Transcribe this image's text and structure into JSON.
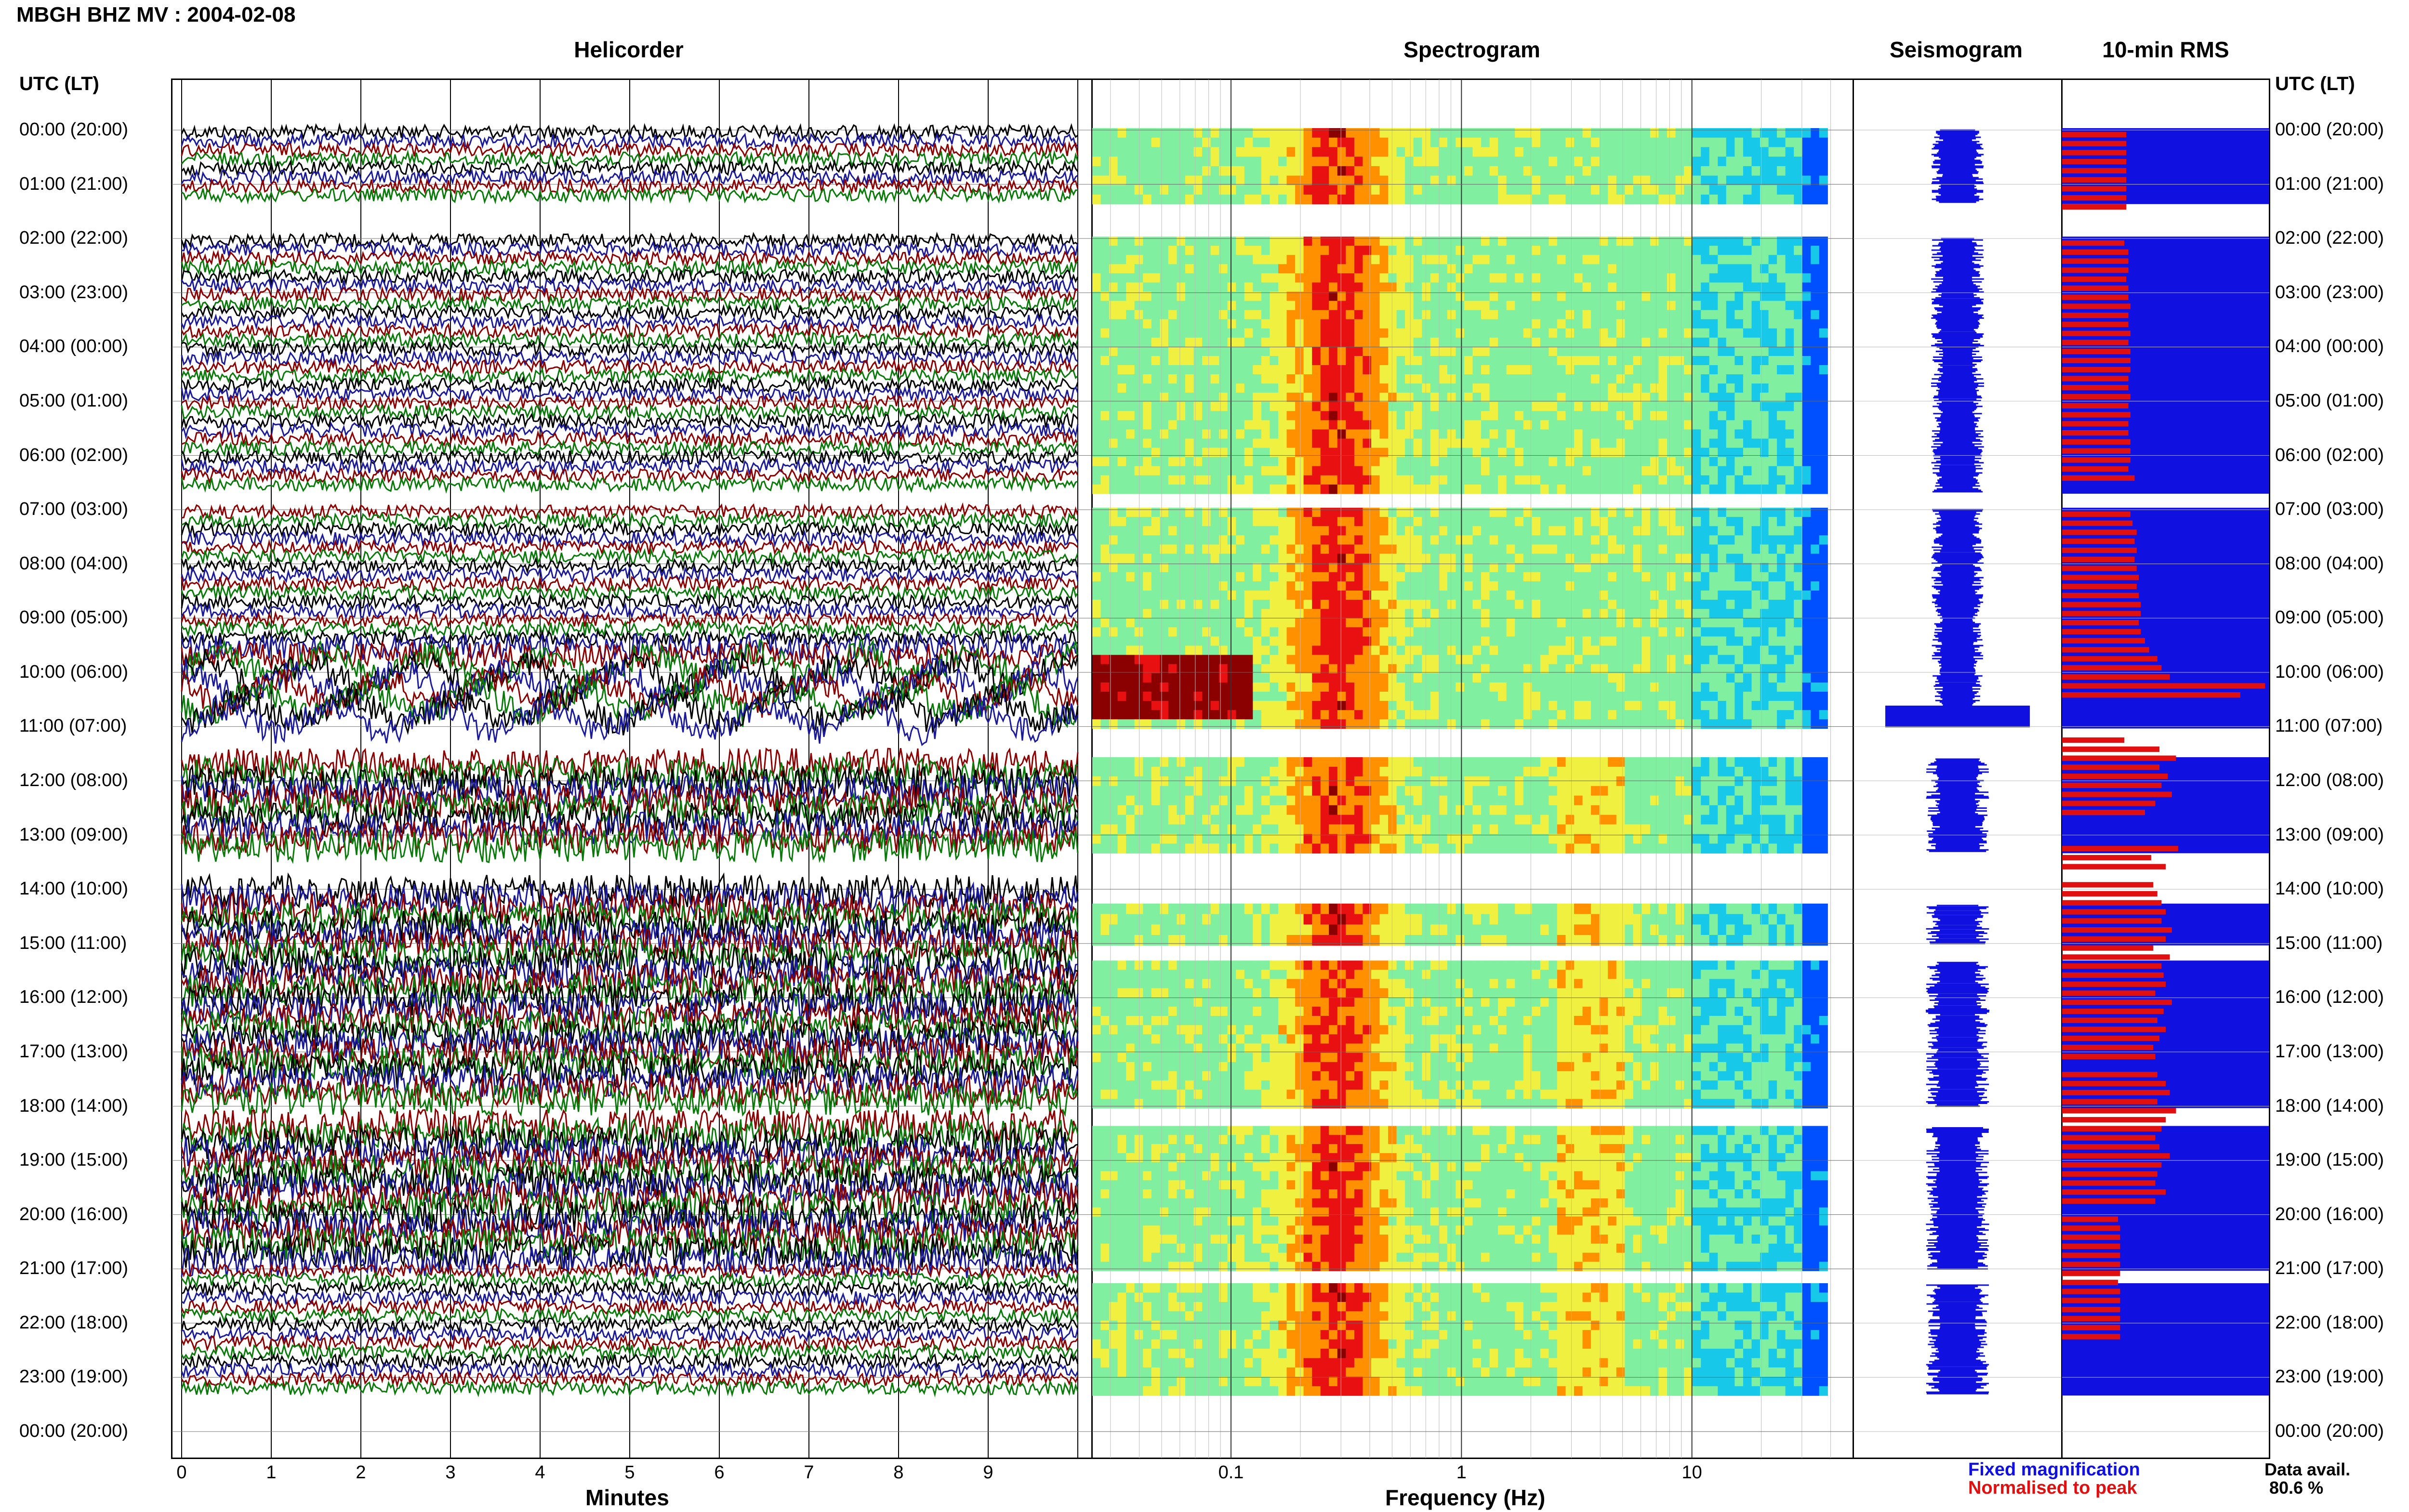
{
  "title": "MBGH BHZ MV : 2004-02-08",
  "panels": {
    "helicorder": "Helicorder",
    "spectrogram": "Spectrogram",
    "seismogram": "Seismogram",
    "rms": "10-min RMS"
  },
  "time_axis_header": "UTC (LT)",
  "legend": {
    "fixed": "Fixed magnification",
    "normalised": "Normalised to peak",
    "fixed_color": "#1010e0",
    "normalised_color": "#e01010"
  },
  "data_avail": {
    "label": "Data avail.",
    "value": "80.6 %"
  },
  "chart_data": [
    {
      "type": "heatmap",
      "name": "Helicorder",
      "xlabel": "Minutes",
      "x_ticks": [
        "0",
        "1",
        "2",
        "3",
        "4",
        "5",
        "6",
        "7",
        "8",
        "9"
      ],
      "xlim": [
        0,
        10
      ],
      "y_ticks": [
        "00:00 (20:00)",
        "01:00 (21:00)",
        "02:00 (22:00)",
        "03:00 (23:00)",
        "04:00 (00:00)",
        "05:00 (01:00)",
        "06:00 (02:00)",
        "07:00 (03:00)",
        "08:00 (04:00)",
        "09:00 (05:00)",
        "10:00 (06:00)",
        "11:00 (07:00)",
        "12:00 (08:00)",
        "13:00 (09:00)",
        "14:00 (10:00)",
        "15:00 (11:00)",
        "16:00 (12:00)",
        "17:00 (13:00)",
        "18:00 (14:00)",
        "19:00 (15:00)",
        "20:00 (16:00)",
        "21:00 (17:00)",
        "22:00 (18:00)",
        "23:00 (19:00)",
        "00:00 (20:00)"
      ],
      "trace_colors": [
        "#000000",
        "#1a1a9a",
        "#8b0000",
        "#0a7a0a"
      ],
      "data_hours": [
        [
          0,
          1.33
        ],
        [
          2,
          6.67
        ],
        [
          7,
          11
        ],
        [
          11.6,
          13.3
        ],
        [
          13.9,
          18
        ],
        [
          18.3,
          21
        ],
        [
          21,
          23.3
        ]
      ]
    },
    {
      "type": "heatmap",
      "name": "Spectrogram",
      "xlabel": "Frequency (Hz)",
      "x_scale": "log",
      "x_ticks": [
        "0.1",
        "1",
        "10"
      ],
      "xlim": [
        0.025,
        50
      ]
    },
    {
      "type": "line",
      "name": "Seismogram"
    },
    {
      "type": "bar",
      "name": "10-min RMS",
      "series": [
        {
          "name": "Fixed magnification",
          "color": "#1010e0"
        },
        {
          "name": "Normalised to peak",
          "color": "#e01010"
        }
      ],
      "red_fraction": [
        0.31,
        0.31,
        0.31,
        0.31,
        0.31,
        0.31,
        0.31,
        0.31,
        0.31,
        0,
        0,
        0,
        0.3,
        0.32,
        0.32,
        0.32,
        0.31,
        0.32,
        0.32,
        0.33,
        0.32,
        0.32,
        0.33,
        0.32,
        0.33,
        0.33,
        0.33,
        0.32,
        0.32,
        0.33,
        0.32,
        0.33,
        0.32,
        0.32,
        0.33,
        0.33,
        0.33,
        0.32,
        0.35,
        0,
        0,
        0,
        0.33,
        0.34,
        0.36,
        0.35,
        0.36,
        0.35,
        0.36,
        0.37,
        0.36,
        0.37,
        0.38,
        0.38,
        0.37,
        0.38,
        0.4,
        0.42,
        0.46,
        0.48,
        0.52,
        0.98,
        0.86,
        0,
        0,
        0,
        0,
        0.3,
        0.47,
        0.55,
        0.47,
        0.51,
        0.48,
        0.53,
        0.45,
        0.4,
        0,
        0,
        0,
        0.56,
        0.43,
        0.5,
        0,
        0.44,
        0.46,
        0.48,
        0.5,
        0.48,
        0.53,
        0.5,
        0.44,
        0.52,
        0.48,
        0.49,
        0.5,
        0.45,
        0.53,
        0.49,
        0.46,
        0.5,
        0.47,
        0.44,
        0.45,
        0,
        0.46,
        0.5,
        0.52,
        0.46,
        0.55,
        0.5,
        0.48,
        0.45,
        0.47,
        0.52,
        0.48,
        0.46,
        0.45,
        0.5,
        0.45,
        0,
        0.27,
        0.28,
        0.28,
        0.28,
        0.28,
        0.28,
        0.28,
        0.27,
        0.28,
        0.28,
        0.28,
        0.28,
        0.28,
        0.28
      ]
    }
  ]
}
